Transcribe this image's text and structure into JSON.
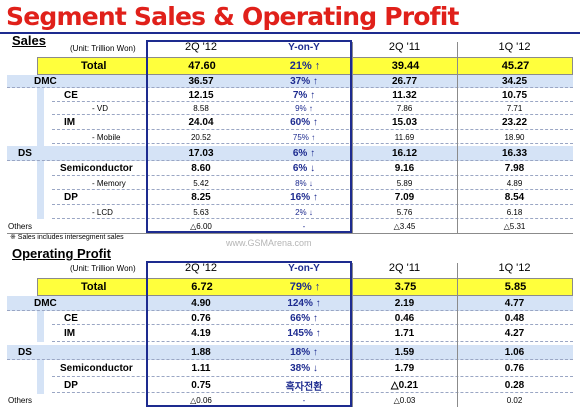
{
  "title": "Segment Sales & Operating Profit",
  "note": "※ Sales includes intersegment sales",
  "watermark": "www.GSMArena.com",
  "colors": {
    "title_red": "#e0201a",
    "navy": "#1d2b8f",
    "total_yellow": "#ffff3c",
    "row_blue": "#d5e3f6"
  },
  "sales": {
    "label": "Sales",
    "unit": "(Unit: Trillion Won)",
    "columns": [
      "2Q '12",
      "Y-on-Y",
      "2Q '11",
      "1Q '12"
    ],
    "rows": [
      {
        "label": "Total",
        "q2_12": "47.60",
        "yoy": "21% ↑",
        "q2_11": "39.44",
        "q1_12": "45.27"
      },
      {
        "label": "DMC",
        "q2_12": "36.57",
        "yoy": "37% ↑",
        "q2_11": "26.77",
        "q1_12": "34.25"
      },
      {
        "label": "CE",
        "q2_12": "12.15",
        "yoy": "7% ↑",
        "q2_11": "11.32",
        "q1_12": "10.75"
      },
      {
        "label": "- VD",
        "q2_12": "8.58",
        "yoy": "9% ↑",
        "q2_11": "7.86",
        "q1_12": "7.71"
      },
      {
        "label": "IM",
        "q2_12": "24.04",
        "yoy": "60% ↑",
        "q2_11": "15.03",
        "q1_12": "23.22"
      },
      {
        "label": "- Mobile",
        "q2_12": "20.52",
        "yoy": "75% ↑",
        "q2_11": "11.69",
        "q1_12": "18.90"
      },
      {
        "label": "DS",
        "q2_12": "17.03",
        "yoy": "6% ↑",
        "q2_11": "16.12",
        "q1_12": "16.33"
      },
      {
        "label": "Semiconductor",
        "q2_12": "8.60",
        "yoy": "6% ↓",
        "q2_11": "9.16",
        "q1_12": "7.98"
      },
      {
        "label": "- Memory",
        "q2_12": "5.42",
        "yoy": "8% ↓",
        "q2_11": "5.89",
        "q1_12": "4.89"
      },
      {
        "label": "DP",
        "q2_12": "8.25",
        "yoy": "16% ↑",
        "q2_11": "7.09",
        "q1_12": "8.54"
      },
      {
        "label": "- LCD",
        "q2_12": "5.63",
        "yoy": "2% ↓",
        "q2_11": "5.76",
        "q1_12": "6.18"
      },
      {
        "label": "Others",
        "q2_12": "△6.00",
        "yoy": "-",
        "q2_11": "△3.45",
        "q1_12": "△5.31"
      }
    ]
  },
  "operating_profit": {
    "label": "Operating Profit",
    "unit": "(Unit: Trillion Won)",
    "columns": [
      "2Q '12",
      "Y-on-Y",
      "2Q '11",
      "1Q '12"
    ],
    "rows": [
      {
        "label": "Total",
        "q2_12": "6.72",
        "yoy": "79% ↑",
        "q2_11": "3.75",
        "q1_12": "5.85"
      },
      {
        "label": "DMC",
        "q2_12": "4.90",
        "yoy": "124% ↑",
        "q2_11": "2.19",
        "q1_12": "4.77"
      },
      {
        "label": "CE",
        "q2_12": "0.76",
        "yoy": "66% ↑",
        "q2_11": "0.46",
        "q1_12": "0.48"
      },
      {
        "label": "IM",
        "q2_12": "4.19",
        "yoy": "145% ↑",
        "q2_11": "1.71",
        "q1_12": "4.27"
      },
      {
        "label": "DS",
        "q2_12": "1.88",
        "yoy": "18% ↑",
        "q2_11": "1.59",
        "q1_12": "1.06"
      },
      {
        "label": "Semiconductor",
        "q2_12": "1.11",
        "yoy": "38% ↓",
        "q2_11": "1.79",
        "q1_12": "0.76"
      },
      {
        "label": "DP",
        "q2_12": "0.75",
        "yoy": "흑자전환",
        "q2_11": "△0.21",
        "q1_12": "0.28"
      },
      {
        "label": "Others",
        "q2_12": "△0.06",
        "yoy": "-",
        "q2_11": "△0.03",
        "q1_12": "0.02"
      }
    ]
  }
}
